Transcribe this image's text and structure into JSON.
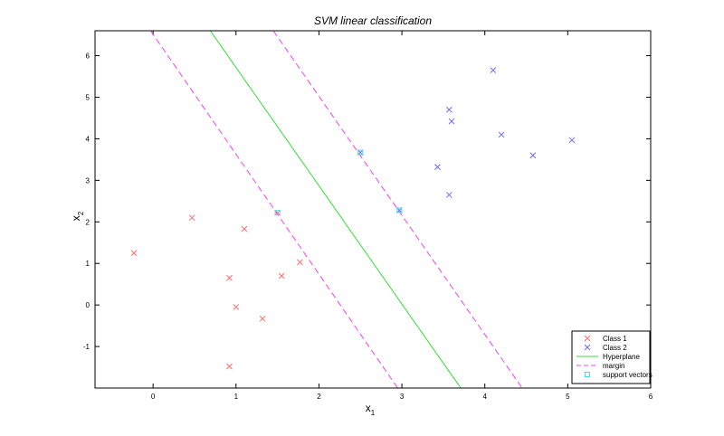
{
  "chart_data": {
    "type": "scatter",
    "title": "SVM linear classification",
    "xlabel": {
      "base": "x",
      "sub": "1"
    },
    "ylabel": {
      "base": "x",
      "sub": "2"
    },
    "xlim": [
      -0.7,
      6
    ],
    "ylim": [
      -2,
      6.6
    ],
    "xticks": [
      0,
      1,
      2,
      3,
      4,
      5,
      6
    ],
    "yticks": [
      -1,
      0,
      1,
      2,
      3,
      4,
      5,
      6
    ],
    "grid": false,
    "legend_position": "bottom-right",
    "series": [
      {
        "name": "Class 1",
        "marker": "x",
        "color": "#ff6b6b",
        "points": [
          [
            -0.23,
            1.25
          ],
          [
            0.47,
            2.1
          ],
          [
            1.1,
            1.83
          ],
          [
            0.92,
            0.65
          ],
          [
            1.55,
            0.7
          ],
          [
            1.77,
            1.03
          ],
          [
            1.0,
            -0.05
          ],
          [
            1.32,
            -0.33
          ],
          [
            0.92,
            -1.48
          ],
          [
            1.5,
            2.22
          ]
        ]
      },
      {
        "name": "Class 2",
        "marker": "x",
        "color": "#6b6bff",
        "points": [
          [
            4.1,
            5.65
          ],
          [
            3.57,
            4.7
          ],
          [
            3.6,
            4.42
          ],
          [
            4.2,
            4.1
          ],
          [
            4.58,
            3.6
          ],
          [
            5.05,
            3.97
          ],
          [
            3.43,
            3.32
          ],
          [
            3.57,
            2.65
          ],
          [
            2.5,
            3.67
          ],
          [
            2.97,
            2.28
          ]
        ]
      },
      {
        "name": "Hyperplane",
        "line": "solid",
        "color": "#33dd33",
        "x": [
          0.69,
          3.71
        ],
        "y": [
          6.6,
          -2.0
        ]
      },
      {
        "name": "margin",
        "line": "dashed",
        "color": "#ee44ee",
        "segments": [
          {
            "x": [
              -0.03,
              2.95
            ],
            "y": [
              6.6,
              -2.0
            ]
          },
          {
            "x": [
              1.45,
              4.45
            ],
            "y": [
              6.6,
              -2.0
            ]
          }
        ]
      },
      {
        "name": "support vectors",
        "marker": "square",
        "color": "#44ddee",
        "points": [
          [
            1.5,
            2.22
          ],
          [
            2.5,
            3.67
          ],
          [
            2.97,
            2.28
          ]
        ]
      }
    ]
  }
}
